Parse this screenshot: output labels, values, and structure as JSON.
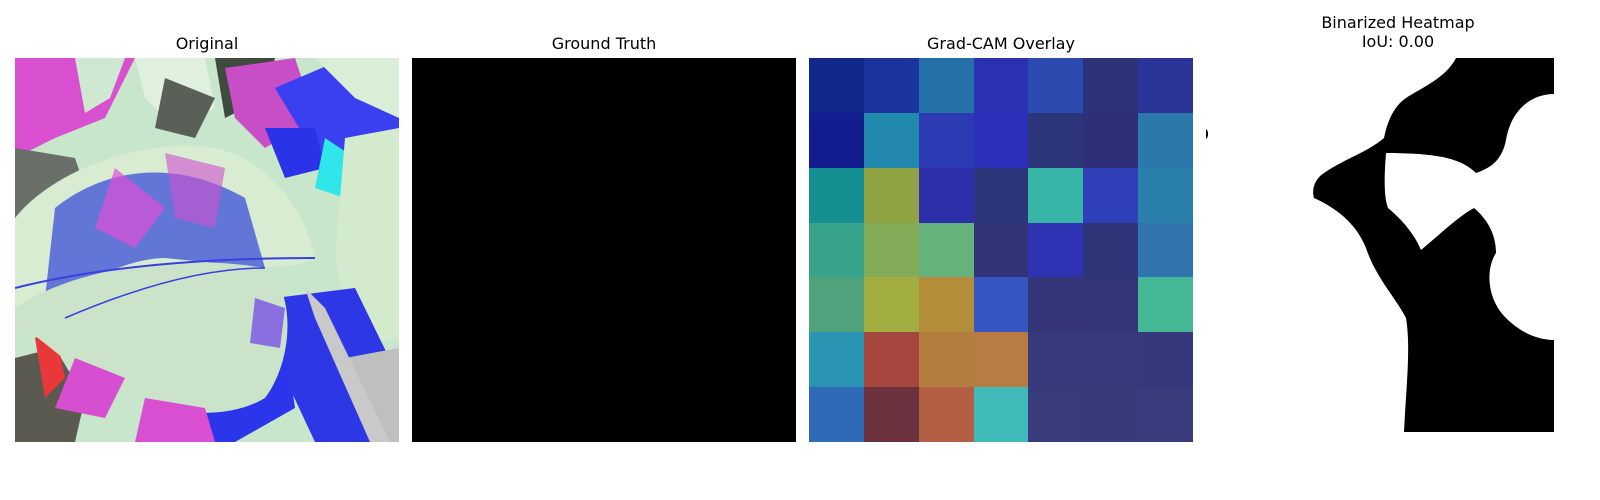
{
  "panels": [
    {
      "title": "Original"
    },
    {
      "title": "Ground Truth"
    },
    {
      "title": "Grad-CAM Overlay"
    },
    {
      "title": "Binarized Heatmap",
      "subtitle": "IoU: 0.00"
    }
  ],
  "gradcam_cells": [
    [
      "#10288a",
      "#1b349d",
      "#2570a8",
      "#2b31b0",
      "#2c4bb0",
      "#2d3378",
      "#2b3597"
    ],
    [
      "#141d8f",
      "#2388ae",
      "#2c3bb4",
      "#2d2fbb",
      "#2c357a",
      "#2d3079",
      "#2a78ac"
    ],
    [
      "#168f92",
      "#8fa343",
      "#2c2fa9",
      "#2d357a",
      "#37b5a6",
      "#3040b8",
      "#2b80ab"
    ],
    [
      "#37a38a",
      "#84ac58",
      "#66b27c",
      "#313377",
      "#2f33b3",
      "#2e3478",
      "#2f74ae"
    ],
    [
      "#4fa27b",
      "#a1ad3f",
      "#b38d39",
      "#3555c1",
      "#343679",
      "#333579",
      "#45b995"
    ],
    [
      "#2a95b2",
      "#a5473e",
      "#b37d3f",
      "#b87c42",
      "#36397a",
      "#363a7a",
      "#35387a"
    ],
    [
      "#2f6ab6",
      "#6b323e",
      "#b25f43",
      "#3fbab8",
      "#393c7b",
      "#383b7a",
      "#393c7c"
    ]
  ]
}
